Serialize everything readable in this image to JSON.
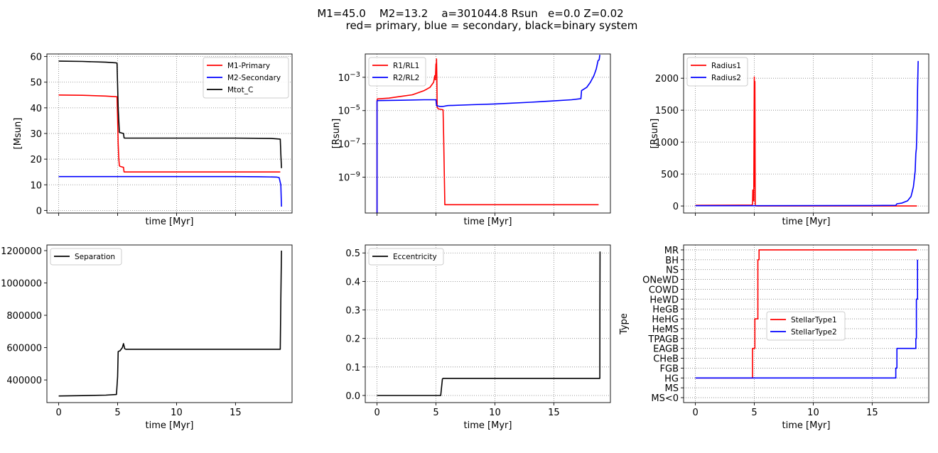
{
  "figure": {
    "title_line1": "M1=45.0    M2=13.2    a=301044.8 Rsun   e=0.0 Z=0.02",
    "title_line2": "red= primary, blue = secondary, black=binary system"
  },
  "colors": {
    "primary": "#ff0000",
    "secondary": "#0000ff",
    "binary": "#000000",
    "grid": "#808080"
  },
  "chart_data": [
    {
      "type": "line",
      "xlabel": "time [Myr]",
      "ylabel": "[Msun]",
      "xlim": [
        -1,
        19.8
      ],
      "ylim": [
        -1,
        61
      ],
      "xticks": [
        0,
        5,
        10,
        15
      ],
      "show_xticklabels": false,
      "yticks": [
        0,
        10,
        20,
        30,
        40,
        50,
        60
      ],
      "ytick_labels": [
        "0",
        "10",
        "20",
        "30",
        "40",
        "50",
        "60"
      ],
      "grid": true,
      "legend": "top-right",
      "series": [
        {
          "name": "M1-Primary",
          "color": "#ff0000",
          "x": [
            0,
            2,
            4,
            4.95,
            5.0,
            5.05,
            5.1,
            5.15,
            5.2,
            5.35,
            5.5,
            5.55,
            6,
            10,
            15,
            18.8
          ],
          "y": [
            45,
            44.9,
            44.6,
            44.3,
            36,
            26,
            20,
            17.5,
            17.2,
            17,
            16.8,
            15,
            15,
            15,
            15,
            15
          ]
        },
        {
          "name": "M2-Secondary",
          "color": "#0000ff",
          "x": [
            0,
            5,
            10,
            15,
            17,
            18.5,
            18.7,
            18.85,
            18.9
          ],
          "y": [
            13.2,
            13.2,
            13.2,
            13.2,
            13.15,
            13.0,
            12.8,
            10,
            1.5
          ]
        },
        {
          "name": "Mtot_C",
          "color": "#000000",
          "x": [
            0,
            2,
            4,
            4.9,
            4.95,
            5.05,
            5.15,
            5.25,
            5.5,
            5.55,
            5.6,
            10,
            15,
            18,
            18.8,
            18.85,
            18.9
          ],
          "y": [
            58.2,
            58.1,
            57.8,
            57.5,
            57.3,
            40,
            30.5,
            30.3,
            30,
            28.3,
            28.2,
            28.2,
            28.2,
            28.1,
            27.8,
            22,
            16.5
          ]
        }
      ]
    },
    {
      "type": "line",
      "xlabel": "time [Myr]",
      "ylabel": "[Rsun]",
      "yscale": "log",
      "xlim": [
        -1,
        19.8
      ],
      "ylim": [
        -11.15,
        -1.6
      ],
      "xticks": [
        0,
        5,
        10,
        15
      ],
      "show_xticklabels": false,
      "yticks": [
        -9,
        -7,
        -5,
        -3
      ],
      "ytick_labels": [
        "10^-9",
        "10^-7",
        "10^-5",
        "10^-3"
      ],
      "grid": true,
      "legend": "top-left",
      "series": [
        {
          "name": "R1/RL1",
          "color": "#ff0000",
          "x": [
            0,
            0.001,
            0.02,
            1,
            2,
            3,
            4,
            4.5,
            4.8,
            4.9,
            4.95,
            5.0,
            5.02,
            5.05,
            5.08,
            5.1,
            5.15,
            5.2,
            5.6,
            5.65,
            5.75,
            6,
            10,
            15,
            18.8
          ],
          "y": [
            -11.2,
            -4.4,
            -4.3,
            -4.25,
            -4.15,
            -4.05,
            -3.8,
            -3.6,
            -3.3,
            -2.9,
            -3.15,
            -2.2,
            -2.8,
            -1.9,
            -3.2,
            -4.8,
            -4.85,
            -4.9,
            -4.95,
            -6.5,
            -10.65,
            -10.65,
            -10.65,
            -10.65,
            -10.65
          ]
        },
        {
          "name": "R2/RL2",
          "color": "#0000ff",
          "x": [
            0,
            0.001,
            0.02,
            2,
            4,
            5,
            5.05,
            5.3,
            5.6,
            6,
            8,
            10,
            13,
            15,
            16.5,
            17.3,
            17.35,
            17.4,
            17.8,
            18.1,
            18.4,
            18.6,
            18.75,
            18.85,
            18.9
          ],
          "y": [
            -11.2,
            -4.45,
            -4.4,
            -4.38,
            -4.35,
            -4.35,
            -4.7,
            -4.75,
            -4.75,
            -4.7,
            -4.65,
            -4.6,
            -4.5,
            -4.42,
            -4.35,
            -4.28,
            -3.8,
            -3.78,
            -3.6,
            -3.3,
            -2.9,
            -2.5,
            -2.0,
            -1.95,
            -1.65
          ]
        }
      ]
    },
    {
      "type": "line",
      "xlabel": "time [Myr]",
      "ylabel": "[Rsun]",
      "xlim": [
        -1,
        19.8
      ],
      "ylim": [
        -110,
        2380
      ],
      "xticks": [
        0,
        5,
        10,
        15
      ],
      "show_xticklabels": false,
      "yticks": [
        0,
        500,
        1000,
        1500,
        2000
      ],
      "ytick_labels": [
        "0",
        "500",
        "1000",
        "1500",
        "2000"
      ],
      "grid": true,
      "legend": "top-left",
      "series": [
        {
          "name": "Radius1",
          "color": "#ff0000",
          "x": [
            0,
            2,
            4,
            4.8,
            4.85,
            4.87,
            4.9,
            4.95,
            5.0,
            5.03,
            5.05,
            5.08,
            5.1,
            5.15,
            5.3,
            10,
            15,
            18.8
          ],
          "y": [
            10,
            11,
            13,
            15,
            30,
            250,
            150,
            80,
            2020,
            300,
            1950,
            10,
            5,
            1,
            0.5,
            0.5,
            0.5,
            0.5
          ]
        },
        {
          "name": "Radius2",
          "color": "#0000ff",
          "x": [
            0,
            5,
            10,
            15,
            17,
            17.1,
            17.5,
            18,
            18.3,
            18.5,
            18.65,
            18.7,
            18.75,
            18.8,
            18.85,
            18.9
          ],
          "y": [
            5,
            5,
            6,
            8,
            10,
            35,
            45,
            80,
            150,
            300,
            550,
            820,
            900,
            1200,
            1800,
            2270
          ]
        }
      ]
    },
    {
      "type": "line",
      "xlabel": "time [Myr]",
      "ylabel": "",
      "xlim": [
        -1,
        19.8
      ],
      "ylim": [
        260000,
        1235000
      ],
      "xticks": [
        0,
        5,
        10,
        15
      ],
      "xtick_labels": [
        "0",
        "5",
        "10",
        "15"
      ],
      "yticks": [
        400000,
        600000,
        800000,
        1000000,
        1200000
      ],
      "ytick_labels": [
        "400000",
        "600000",
        "800000",
        "1000000",
        "1200000"
      ],
      "grid": false,
      "legend": "top-left",
      "series": [
        {
          "name": "Separation",
          "color": "#000000",
          "x": [
            0,
            2,
            4,
            4.9,
            5.0,
            5.05,
            5.1,
            5.2,
            5.4,
            5.5,
            5.55,
            5.6,
            5.7,
            6,
            10,
            15,
            18.8,
            18.85,
            18.9
          ],
          "y": [
            301000,
            303000,
            306000,
            310000,
            420000,
            575000,
            578000,
            580000,
            600000,
            625000,
            610000,
            593000,
            590000,
            590000,
            590000,
            590000,
            590000,
            900000,
            1200000
          ]
        }
      ]
    },
    {
      "type": "line",
      "xlabel": "time [Myr]",
      "ylabel": "",
      "xlim": [
        -1,
        19.8
      ],
      "ylim": [
        -0.025,
        0.528
      ],
      "xticks": [
        0,
        5,
        10,
        15
      ],
      "xtick_labels": [
        "0",
        "5",
        "10",
        "15"
      ],
      "yticks": [
        0,
        0.1,
        0.2,
        0.3,
        0.4,
        0.5
      ],
      "ytick_labels": [
        "0.0",
        "0.1",
        "0.2",
        "0.3",
        "0.4",
        "0.5"
      ],
      "grid": true,
      "legend": "top-left",
      "series": [
        {
          "name": "Eccentricity",
          "color": "#000000",
          "x": [
            0,
            5.4,
            5.55,
            5.6,
            10,
            15,
            18.9,
            18.91,
            18.92
          ],
          "y": [
            0,
            0,
            0.058,
            0.06,
            0.06,
            0.06,
            0.06,
            0.3,
            0.505
          ]
        }
      ]
    },
    {
      "type": "line",
      "xlabel": "time [Myr]",
      "ylabel": "Type",
      "xlim": [
        -1,
        19.8
      ],
      "ylim": [
        -1.5,
        14.5
      ],
      "xticks": [
        0,
        5,
        10,
        15
      ],
      "xtick_labels": [
        "0",
        "5",
        "10",
        "15"
      ],
      "yticks": [
        -1,
        0,
        1,
        2,
        3,
        4,
        5,
        6,
        7,
        8,
        9,
        10,
        11,
        12,
        13,
        14
      ],
      "ytick_labels": [
        "MS<0",
        "MS",
        "HG",
        "FGB",
        "CHeB",
        "EAGB",
        "TPAGB",
        "HeMS",
        "HeHG",
        "HeGB",
        "HeWD",
        "COWD",
        "ONeWD",
        "NS",
        "BH",
        "MR"
      ],
      "grid": true,
      "legend": "center-right",
      "series": [
        {
          "name": "StellarType1",
          "color": "#ff0000",
          "x": [
            0,
            4.85,
            4.85,
            5.05,
            5.05,
            5.3,
            5.3,
            5.4,
            5.4,
            18.8
          ],
          "y": [
            1,
            1,
            4,
            4,
            7,
            7,
            13,
            13,
            14,
            14
          ]
        },
        {
          "name": "StellarType2",
          "color": "#0000ff",
          "x": [
            0,
            17.0,
            17.0,
            17.1,
            17.1,
            18.7,
            18.7,
            18.75,
            18.75,
            18.85,
            18.85
          ],
          "y": [
            1,
            1,
            2,
            2,
            4,
            4,
            5,
            5,
            9,
            9,
            13
          ]
        }
      ]
    }
  ]
}
